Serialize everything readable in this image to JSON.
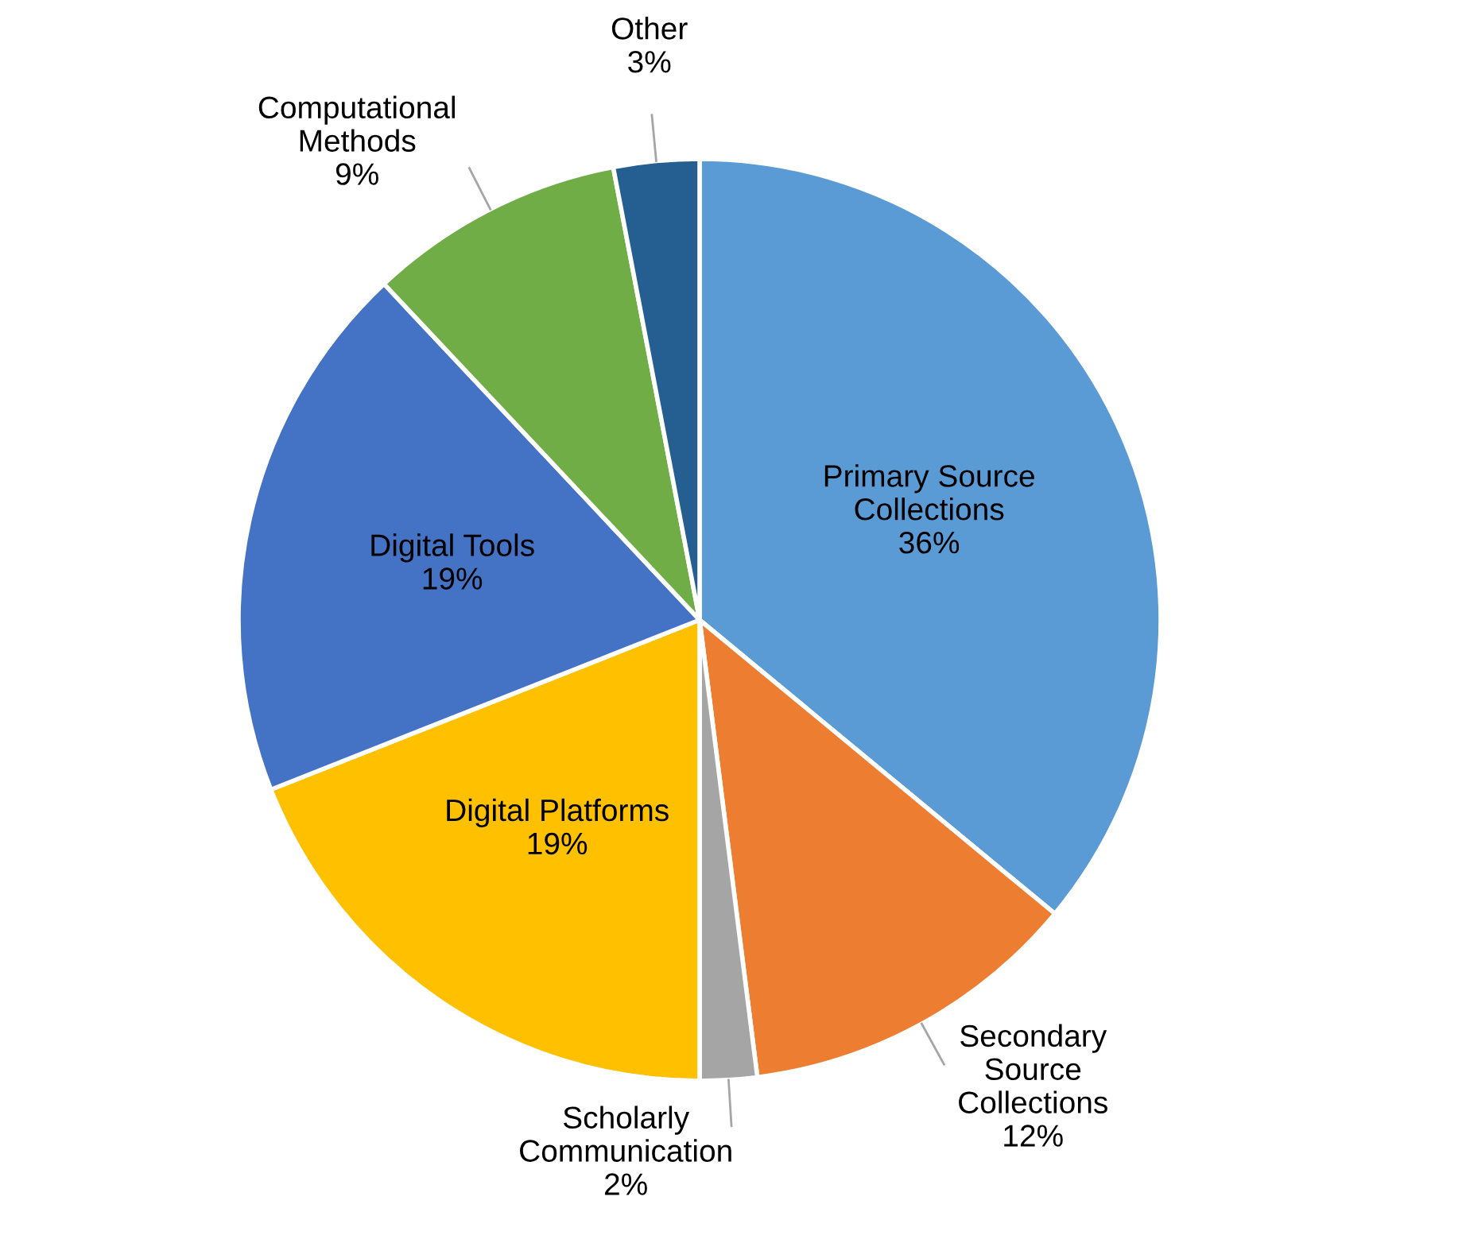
{
  "chart_data": {
    "type": "pie",
    "categories": [
      "Primary Source\nCollections",
      "Secondary\nSource\nCollections",
      "Scholarly\nCommunication",
      "Digital Platforms",
      "Digital Tools",
      "Computational\nMethods",
      "Other"
    ],
    "values": [
      36,
      12,
      2,
      19,
      19,
      9,
      3
    ],
    "value_labels": [
      "36%",
      "12%",
      "2%",
      "19%",
      "19%",
      "9%",
      "3%"
    ],
    "colors": [
      "#5b9bd5",
      "#ed7d31",
      "#a5a5a5",
      "#ffc000",
      "#4472c4",
      "#70ad47",
      "#255e91"
    ],
    "legend": false
  }
}
